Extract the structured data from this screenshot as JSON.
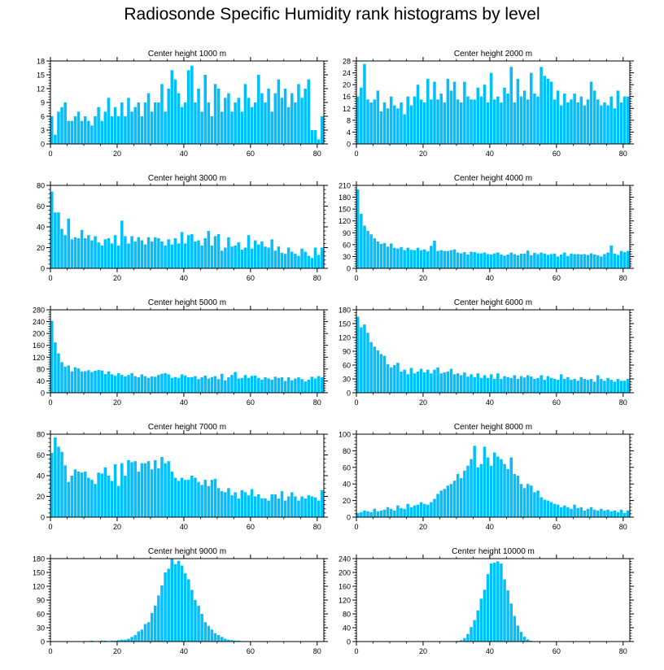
{
  "title": "Radiosonde Specific Humidity rank histograms by level",
  "bar_color": "#00bfff",
  "chart_data": [
    {
      "type": "bar",
      "title": "Center height 1000 m",
      "xlabel": "",
      "ylabel": "",
      "xlim": [
        0,
        82
      ],
      "ylim": [
        0,
        18
      ],
      "xticks": [
        0,
        20,
        40,
        60,
        80
      ],
      "yticks": [
        0,
        3,
        6,
        9,
        12,
        15,
        18
      ],
      "values": [
        6,
        2,
        7,
        8,
        9,
        5,
        5,
        6,
        7,
        5,
        6,
        5,
        4,
        6,
        8,
        5,
        7,
        10,
        6,
        8,
        6,
        9,
        6,
        10,
        7,
        8,
        9,
        6,
        9,
        11,
        7,
        9,
        9,
        13,
        7,
        12,
        16,
        14,
        11,
        8,
        9,
        16,
        17,
        9,
        12,
        7,
        15,
        9,
        6,
        13,
        12,
        7,
        10,
        11,
        7,
        9,
        10,
        7,
        13,
        10,
        8,
        9,
        15,
        11,
        9,
        12,
        7,
        11,
        14,
        10,
        12,
        8,
        11,
        9,
        13,
        10,
        12,
        14,
        3,
        3,
        1,
        6
      ]
    },
    {
      "type": "bar",
      "title": "Center height 2000 m",
      "xlabel": "",
      "ylabel": "",
      "xlim": [
        0,
        82
      ],
      "ylim": [
        0,
        28
      ],
      "xticks": [
        0,
        20,
        40,
        60,
        80
      ],
      "yticks": [
        0,
        4,
        8,
        12,
        16,
        20,
        24,
        28
      ],
      "values": [
        16,
        19,
        27,
        15,
        14,
        15,
        18,
        11,
        14,
        12,
        16,
        13,
        12,
        14,
        10,
        16,
        13,
        16,
        20,
        15,
        14,
        22,
        15,
        21,
        15,
        17,
        14,
        22,
        18,
        21,
        15,
        14,
        21,
        16,
        15,
        15,
        19,
        16,
        20,
        14,
        24,
        15,
        16,
        14,
        19,
        17,
        26,
        14,
        22,
        16,
        18,
        15,
        24,
        17,
        16,
        26,
        23,
        22,
        21,
        15,
        18,
        13,
        17,
        14,
        15,
        17,
        14,
        16,
        13,
        15,
        21,
        18,
        15,
        13,
        14,
        13,
        16,
        12,
        18,
        14,
        16,
        16
      ]
    },
    {
      "type": "bar",
      "title": "Center height 3000 m",
      "xlabel": "",
      "ylabel": "",
      "xlim": [
        0,
        82
      ],
      "ylim": [
        0,
        80
      ],
      "xticks": [
        0,
        20,
        40,
        60,
        80
      ],
      "yticks": [
        0,
        20,
        40,
        60,
        80
      ],
      "values": [
        74,
        54,
        54,
        38,
        32,
        48,
        28,
        30,
        29,
        37,
        29,
        32,
        27,
        31,
        25,
        22,
        28,
        29,
        24,
        32,
        22,
        46,
        31,
        24,
        31,
        26,
        30,
        27,
        23,
        30,
        26,
        30,
        29,
        26,
        22,
        28,
        23,
        29,
        24,
        35,
        24,
        32,
        33,
        26,
        27,
        22,
        29,
        36,
        22,
        31,
        33,
        17,
        20,
        30,
        21,
        22,
        25,
        18,
        20,
        32,
        19,
        27,
        23,
        26,
        21,
        20,
        28,
        17,
        21,
        15,
        14,
        20,
        16,
        14,
        12,
        19,
        16,
        12,
        10,
        20,
        13,
        20
      ]
    },
    {
      "type": "bar",
      "title": "Center height 4000 m",
      "xlabel": "",
      "ylabel": "",
      "xlim": [
        0,
        82
      ],
      "ylim": [
        0,
        210
      ],
      "xticks": [
        0,
        20,
        40,
        60,
        80
      ],
      "yticks": [
        0,
        30,
        60,
        90,
        120,
        150,
        180,
        210
      ],
      "values": [
        200,
        138,
        108,
        95,
        86,
        76,
        68,
        62,
        64,
        55,
        63,
        52,
        50,
        54,
        46,
        52,
        47,
        46,
        52,
        46,
        48,
        43,
        57,
        70,
        44,
        46,
        44,
        44,
        46,
        48,
        40,
        38,
        41,
        35,
        42,
        41,
        38,
        38,
        40,
        36,
        35,
        38,
        40,
        35,
        32,
        35,
        40,
        36,
        33,
        37,
        37,
        45,
        33,
        39,
        36,
        40,
        37,
        34,
        36,
        37,
        30,
        35,
        40,
        31,
        37,
        36,
        36,
        35,
        36,
        34,
        38,
        35,
        33,
        30,
        36,
        40,
        58,
        37,
        34,
        44,
        41,
        44
      ]
    },
    {
      "type": "bar",
      "title": "Center height 5000 m",
      "xlabel": "",
      "ylabel": "",
      "xlim": [
        0,
        82
      ],
      "ylim": [
        0,
        280
      ],
      "xticks": [
        0,
        20,
        40,
        60,
        80
      ],
      "yticks": [
        0,
        40,
        80,
        120,
        160,
        200,
        240,
        280
      ],
      "values": [
        243,
        170,
        133,
        103,
        88,
        92,
        72,
        86,
        82,
        72,
        73,
        76,
        70,
        74,
        77,
        75,
        63,
        72,
        62,
        58,
        66,
        60,
        55,
        60,
        66,
        56,
        52,
        62,
        56,
        50,
        55,
        54,
        60,
        64,
        66,
        62,
        50,
        53,
        50,
        62,
        58,
        52,
        53,
        56,
        46,
        52,
        58,
        48,
        53,
        56,
        46,
        64,
        42,
        52,
        60,
        70,
        48,
        50,
        60,
        50,
        57,
        58,
        50,
        44,
        52,
        48,
        44,
        54,
        50,
        52,
        40,
        52,
        42,
        48,
        52,
        46,
        38,
        44,
        54,
        48,
        56,
        52
      ]
    },
    {
      "type": "bar",
      "title": "Center height 6000 m",
      "xlabel": "",
      "ylabel": "",
      "xlim": [
        0,
        82
      ],
      "ylim": [
        0,
        180
      ],
      "xticks": [
        0,
        20,
        40,
        60,
        80
      ],
      "yticks": [
        0,
        30,
        60,
        90,
        120,
        150,
        180
      ],
      "values": [
        165,
        142,
        148,
        130,
        110,
        100,
        92,
        84,
        80,
        62,
        55,
        60,
        65,
        46,
        50,
        40,
        54,
        42,
        46,
        52,
        44,
        50,
        42,
        50,
        55,
        42,
        44,
        46,
        52,
        40,
        42,
        38,
        44,
        35,
        40,
        34,
        42,
        32,
        38,
        32,
        40,
        30,
        42,
        30,
        36,
        34,
        32,
        38,
        30,
        36,
        33,
        38,
        35,
        30,
        32,
        38,
        28,
        36,
        32,
        30,
        28,
        40,
        30,
        34,
        28,
        30,
        26,
        34,
        30,
        28,
        30,
        24,
        38,
        30,
        26,
        32,
        28,
        24,
        30,
        26,
        26,
        30
      ]
    },
    {
      "type": "bar",
      "title": "Center height 7000 m",
      "xlabel": "",
      "ylabel": "",
      "xlim": [
        0,
        82
      ],
      "ylim": [
        0,
        80
      ],
      "xticks": [
        0,
        20,
        40,
        60,
        80
      ],
      "yticks": [
        0,
        20,
        40,
        60,
        80
      ],
      "values": [
        62,
        77,
        68,
        63,
        50,
        34,
        40,
        46,
        44,
        43,
        44,
        38,
        36,
        32,
        43,
        42,
        48,
        40,
        35,
        51,
        30,
        52,
        40,
        55,
        53,
        54,
        44,
        52,
        52,
        54,
        46,
        55,
        47,
        58,
        52,
        54,
        44,
        38,
        35,
        38,
        36,
        36,
        40,
        38,
        34,
        31,
        36,
        30,
        36,
        37,
        28,
        25,
        24,
        28,
        21,
        24,
        18,
        26,
        24,
        21,
        27,
        20,
        22,
        18,
        18,
        16,
        22,
        22,
        18,
        25,
        16,
        20,
        24,
        20,
        16,
        20,
        18,
        21,
        20,
        19,
        16,
        26
      ]
    },
    {
      "type": "bar",
      "title": "Center height 8000 m",
      "xlabel": "",
      "ylabel": "",
      "xlim": [
        0,
        82
      ],
      "ylim": [
        0,
        100
      ],
      "xticks": [
        0,
        20,
        40,
        60,
        80
      ],
      "yticks": [
        0,
        20,
        40,
        60,
        80,
        100
      ],
      "values": [
        5,
        6,
        8,
        7,
        6,
        10,
        7,
        8,
        9,
        12,
        10,
        8,
        14,
        11,
        10,
        16,
        12,
        14,
        15,
        18,
        16,
        15,
        18,
        22,
        28,
        32,
        34,
        38,
        40,
        44,
        52,
        47,
        56,
        62,
        70,
        86,
        60,
        64,
        85,
        72,
        62,
        78,
        73,
        70,
        64,
        58,
        72,
        52,
        50,
        40,
        35,
        40,
        38,
        30,
        32,
        24,
        21,
        20,
        18,
        16,
        15,
        12,
        14,
        12,
        10,
        15,
        11,
        12,
        8,
        10,
        12,
        9,
        8,
        10,
        8,
        9,
        7,
        8,
        6,
        9,
        5,
        8
      ]
    },
    {
      "type": "bar",
      "title": "Center height 9000 m",
      "xlabel": "",
      "ylabel": "",
      "xlim": [
        0,
        82
      ],
      "ylim": [
        0,
        180
      ],
      "xticks": [
        0,
        20,
        40,
        60,
        80
      ],
      "yticks": [
        0,
        30,
        60,
        90,
        120,
        150,
        180
      ],
      "values": [
        0,
        0,
        0,
        0,
        0,
        0,
        0,
        0,
        1,
        0,
        1,
        1,
        2,
        1,
        1,
        2,
        2,
        1,
        2,
        2,
        3,
        4,
        4,
        6,
        10,
        14,
        22,
        26,
        38,
        42,
        62,
        78,
        100,
        122,
        150,
        158,
        180,
        168,
        175,
        165,
        148,
        135,
        112,
        90,
        78,
        60,
        42,
        34,
        26,
        18,
        14,
        10,
        6,
        4,
        3,
        2,
        2,
        1,
        1,
        1,
        0,
        0,
        1,
        0,
        0,
        0,
        0,
        0,
        0,
        0,
        0,
        0,
        0,
        0,
        0,
        0,
        0,
        0,
        0,
        0,
        0,
        0
      ]
    },
    {
      "type": "bar",
      "title": "Center height 10000 m",
      "xlabel": "",
      "ylabel": "",
      "xlim": [
        0,
        82
      ],
      "ylim": [
        0,
        240
      ],
      "xticks": [
        0,
        20,
        40,
        60,
        80
      ],
      "yticks": [
        0,
        40,
        80,
        120,
        160,
        200,
        240
      ],
      "values": [
        0,
        0,
        0,
        0,
        0,
        0,
        0,
        0,
        0,
        0,
        0,
        0,
        0,
        0,
        0,
        0,
        0,
        0,
        0,
        0,
        0,
        0,
        0,
        0,
        0,
        0,
        0,
        0,
        0,
        1,
        2,
        4,
        10,
        22,
        42,
        62,
        90,
        124,
        150,
        195,
        226,
        228,
        232,
        226,
        180,
        148,
        110,
        74,
        46,
        28,
        14,
        6,
        2,
        1,
        0,
        0,
        0,
        0,
        0,
        0,
        0,
        0,
        0,
        0,
        0,
        0,
        0,
        0,
        0,
        0,
        0,
        0,
        0,
        0,
        0,
        0,
        0,
        0,
        0,
        0,
        0,
        0
      ]
    }
  ]
}
